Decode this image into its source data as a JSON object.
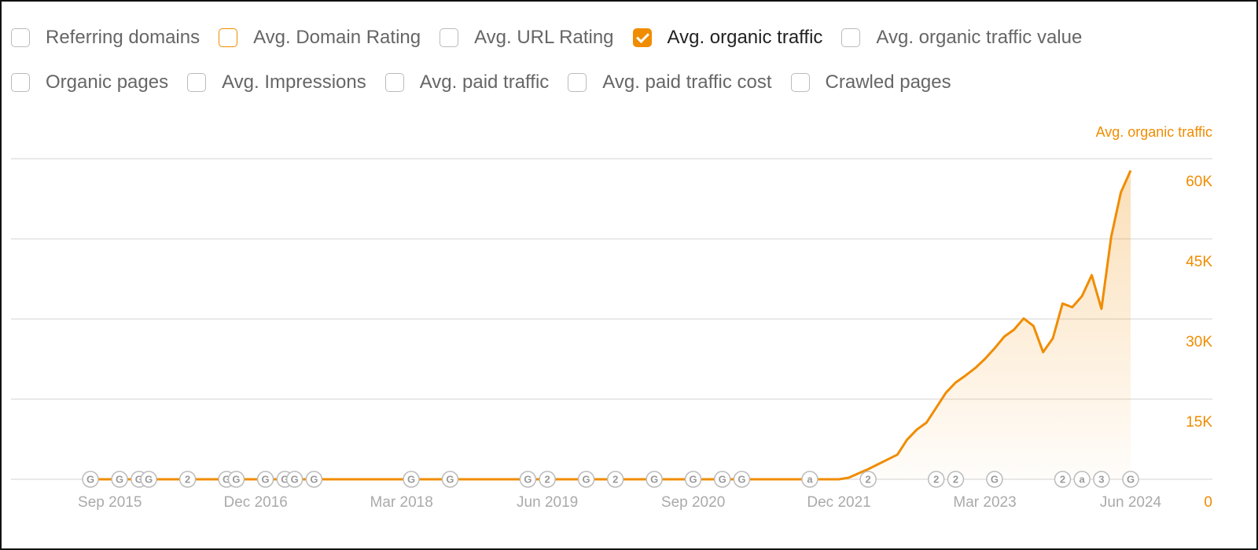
{
  "filters": [
    [
      {
        "label": "Referring domains",
        "checked": false
      },
      {
        "label": "Avg. Domain Rating",
        "checked": false,
        "color": "#f08c00"
      },
      {
        "label": "Avg. URL Rating",
        "checked": false
      },
      {
        "label": "Avg. organic traffic",
        "checked": true,
        "color": "#f08c00"
      },
      {
        "label": "Avg. organic traffic value",
        "checked": false
      }
    ],
    [
      {
        "label": "Organic pages",
        "checked": false
      },
      {
        "label": "Avg. Impressions",
        "checked": false
      },
      {
        "label": "Avg. paid traffic",
        "checked": false
      },
      {
        "label": "Avg. paid traffic cost",
        "checked": false
      },
      {
        "label": "Crawled pages",
        "checked": false
      }
    ]
  ],
  "chart_data": {
    "type": "area",
    "y_label": "Avg. organic traffic",
    "color": "#f08c00",
    "grid": true,
    "y_axis_side": "right",
    "x": [
      "2015-07",
      "2015-08",
      "2015-09",
      "2015-10",
      "2015-11",
      "2015-12",
      "2016-01",
      "2016-02",
      "2016-03",
      "2016-04",
      "2016-05",
      "2016-06",
      "2016-07",
      "2016-08",
      "2016-09",
      "2016-10",
      "2016-11",
      "2016-12",
      "2017-01",
      "2017-02",
      "2017-03",
      "2017-04",
      "2017-05",
      "2017-06",
      "2017-07",
      "2017-08",
      "2017-09",
      "2017-10",
      "2017-11",
      "2017-12",
      "2018-01",
      "2018-02",
      "2018-03",
      "2018-04",
      "2018-05",
      "2018-06",
      "2018-07",
      "2018-08",
      "2018-09",
      "2018-10",
      "2018-11",
      "2018-12",
      "2019-01",
      "2019-02",
      "2019-03",
      "2019-04",
      "2019-05",
      "2019-06",
      "2019-07",
      "2019-08",
      "2019-09",
      "2019-10",
      "2019-11",
      "2019-12",
      "2020-01",
      "2020-02",
      "2020-03",
      "2020-04",
      "2020-05",
      "2020-06",
      "2020-07",
      "2020-08",
      "2020-09",
      "2020-10",
      "2020-11",
      "2020-12",
      "2021-01",
      "2021-02",
      "2021-03",
      "2021-04",
      "2021-05",
      "2021-06",
      "2021-07",
      "2021-08",
      "2021-09",
      "2021-10",
      "2021-11",
      "2021-12",
      "2022-01",
      "2022-02",
      "2022-03",
      "2022-04",
      "2022-05",
      "2022-06",
      "2022-07",
      "2022-08",
      "2022-09",
      "2022-10",
      "2022-11",
      "2022-12",
      "2023-01",
      "2023-02",
      "2023-03",
      "2023-04",
      "2023-05",
      "2023-06",
      "2023-07",
      "2023-08",
      "2023-09",
      "2023-10",
      "2023-11",
      "2023-12",
      "2024-01",
      "2024-02",
      "2024-03",
      "2024-04",
      "2024-05",
      "2024-06"
    ],
    "values": [
      0,
      0,
      0,
      0,
      0,
      0,
      0,
      0,
      0,
      0,
      0,
      0,
      0,
      0,
      0,
      0,
      0,
      0,
      0,
      0,
      0,
      0,
      0,
      0,
      0,
      0,
      0,
      0,
      0,
      0,
      0,
      0,
      0,
      0,
      0,
      0,
      0,
      0,
      0,
      0,
      0,
      0,
      0,
      0,
      0,
      0,
      0,
      0,
      0,
      0,
      0,
      0,
      0,
      0,
      0,
      0,
      0,
      0,
      0,
      0,
      0,
      0,
      0,
      0,
      0,
      0,
      0,
      0,
      0,
      0,
      0,
      0,
      0,
      0,
      0,
      0,
      0,
      0,
      300,
      1100,
      1900,
      2800,
      3700,
      4600,
      7400,
      9300,
      10600,
      13400,
      16200,
      18100,
      19400,
      20800,
      22500,
      24500,
      26700,
      28000,
      30100,
      28700,
      23800,
      26400,
      32900,
      32200,
      34300,
      38200,
      31900,
      45400,
      53700,
      57800
    ],
    "xlim": [
      "2015-07",
      "2024-06"
    ],
    "xticks": [
      {
        "value": "2015-09",
        "label": "Sep 2015"
      },
      {
        "value": "2016-12",
        "label": "Dec 2016"
      },
      {
        "value": "2018-03",
        "label": "Mar 2018"
      },
      {
        "value": "2019-06",
        "label": "Jun 2019"
      },
      {
        "value": "2020-09",
        "label": "Sep 2020"
      },
      {
        "value": "2021-12",
        "label": "Dec 2021"
      },
      {
        "value": "2023-03",
        "label": "Mar 2023"
      },
      {
        "value": "2024-06",
        "label": "Jun 2024"
      }
    ],
    "ylim": [
      0,
      60000
    ],
    "yticks": [
      0,
      {
        "value": 15000,
        "label": "15K"
      },
      {
        "value": 30000,
        "label": "30K"
      },
      {
        "value": 45000,
        "label": "45K"
      },
      {
        "value": 60000,
        "label": "60K"
      }
    ],
    "annotations": [
      {
        "x": "2015-07",
        "label": "G"
      },
      {
        "x": "2015-10",
        "label": "G"
      },
      {
        "x": "2015-12",
        "label": "G"
      },
      {
        "x": "2016-01",
        "label": "G"
      },
      {
        "x": "2016-05",
        "label": "2"
      },
      {
        "x": "2016-09",
        "label": "G"
      },
      {
        "x": "2016-10",
        "label": "G"
      },
      {
        "x": "2017-01",
        "label": "G"
      },
      {
        "x": "2017-03",
        "label": "G"
      },
      {
        "x": "2017-04",
        "label": "G"
      },
      {
        "x": "2017-06",
        "label": "G"
      },
      {
        "x": "2018-04",
        "label": "G"
      },
      {
        "x": "2018-08",
        "label": "G"
      },
      {
        "x": "2019-04",
        "label": "G"
      },
      {
        "x": "2019-06",
        "label": "2"
      },
      {
        "x": "2019-10",
        "label": "G"
      },
      {
        "x": "2020-01",
        "label": "2"
      },
      {
        "x": "2020-05",
        "label": "G"
      },
      {
        "x": "2020-09",
        "label": "G"
      },
      {
        "x": "2020-12",
        "label": "G"
      },
      {
        "x": "2021-02",
        "label": "G"
      },
      {
        "x": "2021-09",
        "label": "a"
      },
      {
        "x": "2022-03",
        "label": "2"
      },
      {
        "x": "2022-10",
        "label": "2"
      },
      {
        "x": "2022-12",
        "label": "2"
      },
      {
        "x": "2023-04",
        "label": "G"
      },
      {
        "x": "2023-11",
        "label": "2"
      },
      {
        "x": "2024-01",
        "label": "a"
      },
      {
        "x": "2024-03",
        "label": "3"
      },
      {
        "x": "2024-06",
        "label": "G"
      }
    ]
  }
}
